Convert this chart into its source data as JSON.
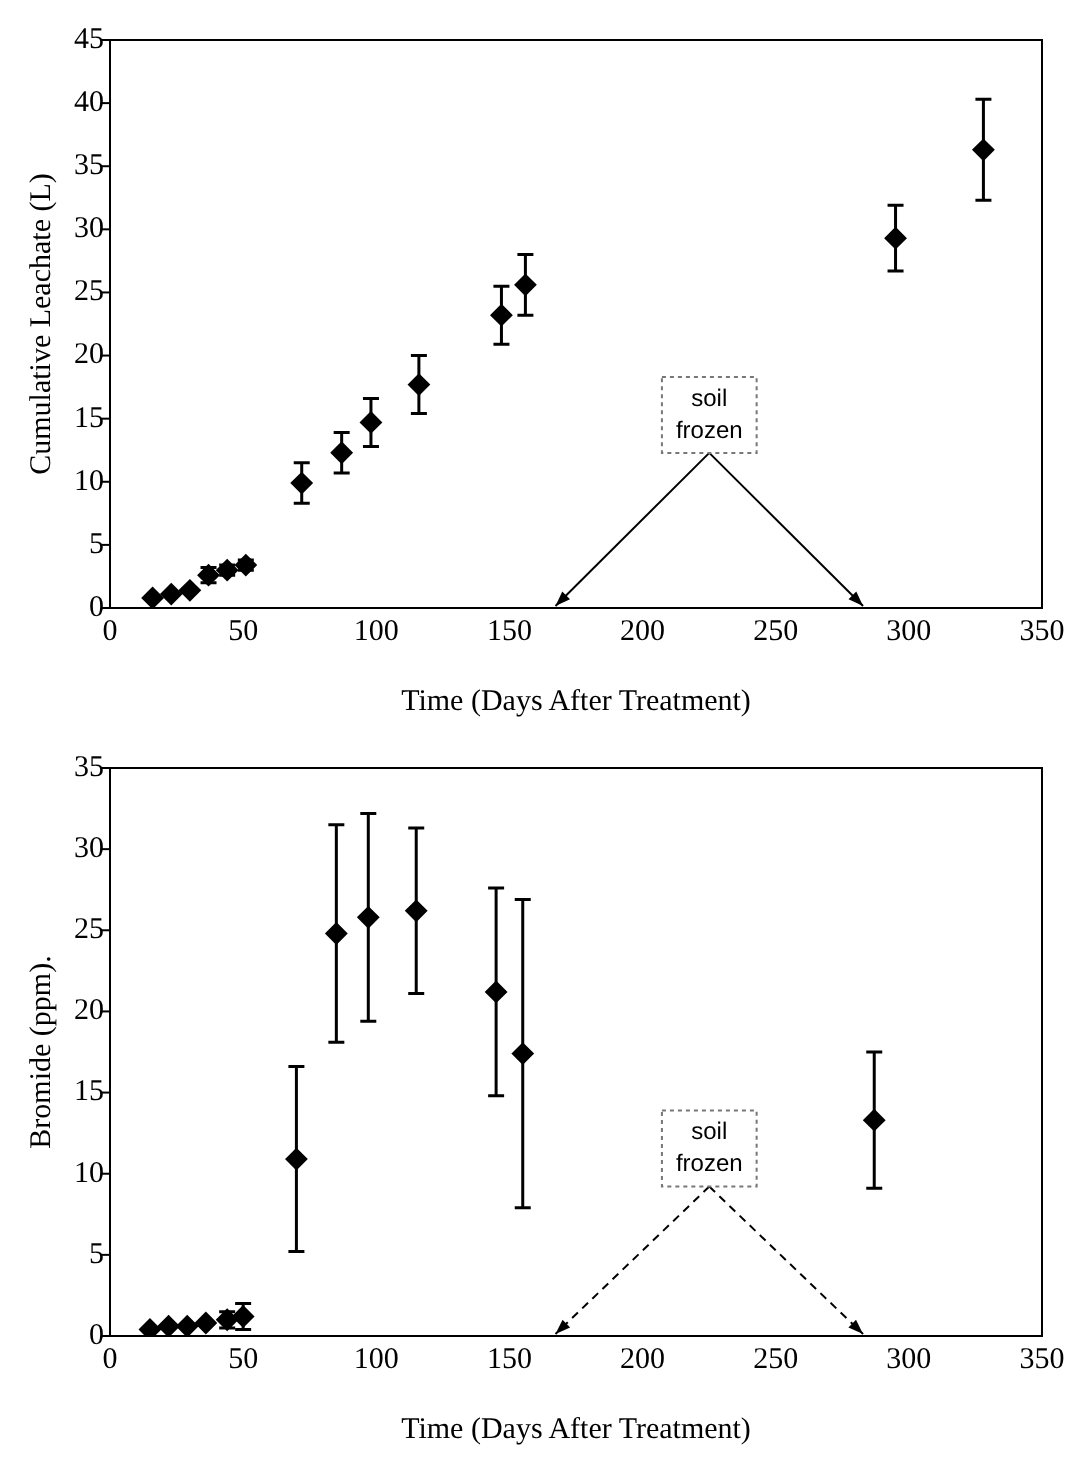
{
  "chart_data": [
    {
      "type": "scatter",
      "xlabel": "Time (Days After Treatment)",
      "ylabel": "Cumulative Leachate (L)",
      "color": "#000000",
      "marker": "diamond",
      "x": [
        16,
        23,
        30,
        37,
        44,
        51,
        72,
        87,
        98,
        116,
        147,
        156,
        295,
        328
      ],
      "values": [
        0.8,
        1.1,
        1.4,
        2.6,
        3.0,
        3.4,
        9.9,
        12.3,
        14.7,
        17.7,
        23.2,
        25.6,
        29.3,
        36.3
      ],
      "errors": [
        null,
        null,
        null,
        0.6,
        0.4,
        0.4,
        1.6,
        1.6,
        1.9,
        2.3,
        2.3,
        2.4,
        2.6,
        4.0
      ],
      "xlim": [
        0,
        350
      ],
      "xticks": [
        0,
        50,
        100,
        150,
        200,
        250,
        300,
        350
      ],
      "ylim": [
        0,
        45
      ],
      "yticks": [
        0,
        5,
        10,
        15,
        20,
        25,
        30,
        35,
        40,
        45
      ],
      "annotations": [
        "soil frozen"
      ]
    },
    {
      "type": "scatter",
      "xlabel": "Time (Days After Treatment)",
      "ylabel": "Bromide (ppm).",
      "color": "#000000",
      "marker": "diamond",
      "x": [
        15,
        22,
        29,
        36,
        44,
        50,
        70,
        85,
        97,
        115,
        145,
        155,
        287
      ],
      "values": [
        0.4,
        0.6,
        0.6,
        0.8,
        1.0,
        1.2,
        10.9,
        24.8,
        25.8,
        26.2,
        21.2,
        17.4,
        13.3
      ],
      "errors": [
        null,
        null,
        null,
        null,
        0.5,
        0.8,
        5.7,
        6.7,
        6.4,
        5.1,
        6.4,
        9.5,
        4.2
      ],
      "xlim": [
        0,
        350
      ],
      "xticks": [
        0,
        50,
        100,
        150,
        200,
        250,
        300,
        350
      ],
      "ylim": [
        0,
        35
      ],
      "yticks": [
        0,
        5,
        10,
        15,
        20,
        25,
        30,
        35
      ],
      "annotations": [
        "soil frozen"
      ]
    }
  ]
}
